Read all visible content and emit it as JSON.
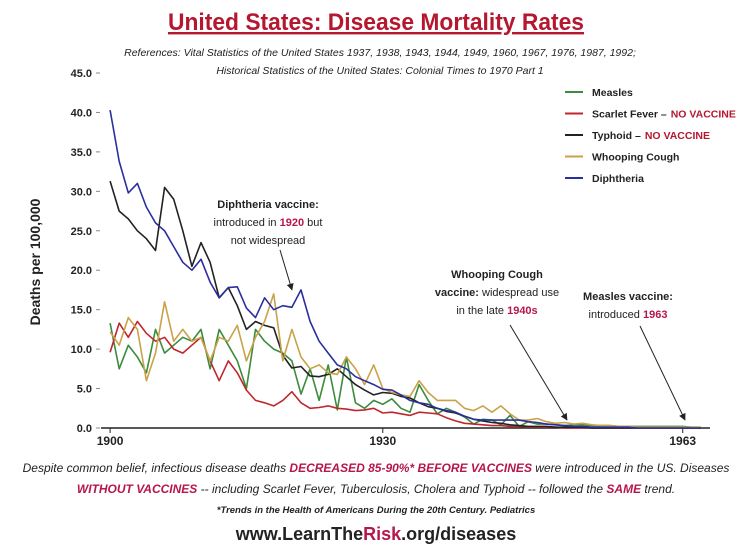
{
  "chart_data": {
    "type": "line",
    "title": "United States: Disease Mortality Rates",
    "references": [
      "References: Vital Statistics of the United States 1937, 1938, 1943, 1944, 1949, 1960, 1967, 1976, 1987, 1992;",
      "Historical Statistics of the United States: Colonial Times to 1970 Part 1"
    ],
    "y_label": "Deaths per 100,000",
    "x": [
      1900,
      1901,
      1902,
      1903,
      1904,
      1905,
      1906,
      1907,
      1908,
      1909,
      1910,
      1911,
      1912,
      1913,
      1914,
      1915,
      1916,
      1917,
      1918,
      1919,
      1920,
      1921,
      1922,
      1923,
      1924,
      1925,
      1926,
      1927,
      1928,
      1929,
      1930,
      1931,
      1932,
      1933,
      1934,
      1935,
      1936,
      1937,
      1938,
      1939,
      1940,
      1941,
      1942,
      1943,
      1944,
      1945,
      1946,
      1947,
      1948,
      1949,
      1950,
      1951,
      1952,
      1953,
      1954,
      1955,
      1956,
      1957,
      1958,
      1959,
      1960,
      1961,
      1962,
      1963,
      1964,
      1965
    ],
    "xlim": [
      1899,
      1966
    ],
    "xticks": [
      1900,
      1930,
      1963
    ],
    "ylim": [
      0,
      45
    ],
    "yticks": [
      {
        "value": 0,
        "label": "0.0"
      },
      {
        "value": 5,
        "label": "5.0"
      },
      {
        "value": 10,
        "label": "10.0"
      },
      {
        "value": 15,
        "label": "15.0"
      },
      {
        "value": 20,
        "label": "20.0"
      },
      {
        "value": 25,
        "label": "25.0"
      },
      {
        "value": 30,
        "label": "30.0"
      },
      {
        "value": 35,
        "label": "35.0"
      },
      {
        "value": 40,
        "label": "40.0"
      },
      {
        "value": 45,
        "label": "45.0"
      }
    ],
    "grid": false,
    "series": [
      {
        "name": "Measles",
        "color": "#3b8c3b",
        "values": [
          13.3,
          7.5,
          10.5,
          9,
          7,
          12.5,
          9.5,
          10.5,
          11.5,
          11,
          12.5,
          7.5,
          12.5,
          10.5,
          8.5,
          5,
          12.5,
          11,
          10,
          9.5,
          8.5,
          4.3,
          7.5,
          3.5,
          8,
          2.3,
          9,
          3.2,
          2.5,
          3.5,
          3,
          3.7,
          2.5,
          2,
          5.5,
          3.5,
          1.8,
          2.5,
          2,
          1.4,
          0.5,
          1.1,
          1,
          0.4,
          1.6,
          0.2,
          0.8,
          0.5,
          0.5,
          0.4,
          0.3,
          0.4,
          0.4,
          0.3,
          0.3,
          0.3,
          0.2,
          0.2,
          0.2,
          0.2,
          0.2,
          0.2,
          0.2,
          0.2,
          0.1,
          0.1
        ]
      },
      {
        "name": "Scarlet Fever –",
        "legend_note": "NO VACCINE",
        "color": "#c0272d",
        "values": [
          9.6,
          13.3,
          11.5,
          13.5,
          12,
          11,
          11.5,
          10,
          9.5,
          10.5,
          11.5,
          8.5,
          6,
          8.5,
          7,
          4.8,
          3.5,
          3.2,
          2.8,
          3.5,
          4.6,
          3.2,
          2.5,
          2.6,
          2.8,
          2.5,
          2.4,
          2.2,
          2.3,
          2.5,
          1.9,
          2,
          1.8,
          1.6,
          2,
          1.9,
          1.8,
          1.3,
          0.9,
          0.6,
          0.5,
          0.4,
          0.3,
          0.3,
          0.2,
          0.2,
          0.1,
          0.1,
          0.1,
          0.1,
          0,
          0,
          0,
          0,
          0,
          0,
          0,
          0,
          0,
          0,
          0,
          0,
          0,
          0,
          0,
          0
        ]
      },
      {
        "name": "Typhoid –",
        "legend_note": "NO VACCINE",
        "color": "#222222",
        "values": [
          31.3,
          27.5,
          26.5,
          25,
          24,
          22.5,
          30.5,
          29,
          25,
          20.5,
          23.5,
          21,
          16.5,
          17.8,
          15.5,
          12.5,
          13.5,
          13,
          12.7,
          9.2,
          7.6,
          7.8,
          6.6,
          6.5,
          6.8,
          7.5,
          6.5,
          5.5,
          4.8,
          4.2,
          4.5,
          4.4,
          4,
          3.8,
          3.2,
          2.7,
          2.5,
          2.1,
          1.9,
          1.5,
          1.1,
          0.9,
          0.7,
          0.6,
          0.4,
          0.3,
          0.2,
          0.2,
          0.2,
          0.1,
          0.1,
          0.1,
          0.1,
          0,
          0,
          0,
          0,
          0,
          0,
          0,
          0,
          0,
          0,
          0,
          0,
          0
        ]
      },
      {
        "name": "Whooping Cough",
        "color": "#c9a24a",
        "values": [
          12.2,
          10.5,
          14,
          12.5,
          6,
          9.5,
          16,
          11,
          12.5,
          11,
          11.5,
          8.5,
          11.5,
          11,
          13,
          8.5,
          11.5,
          13.5,
          17,
          8.5,
          12.5,
          9,
          7.5,
          8,
          7,
          6.8,
          9,
          7.5,
          5.5,
          8,
          5,
          4.5,
          4.2,
          4,
          6,
          4.5,
          3.5,
          3.5,
          3.5,
          2.5,
          2.2,
          2.8,
          2,
          2.8,
          1.8,
          1,
          1,
          1.2,
          0.8,
          0.6,
          0.7,
          0.5,
          0.6,
          0.4,
          0.3,
          0.3,
          0.2,
          0.2,
          0.1,
          0.1,
          0.1,
          0.1,
          0.1,
          0.1,
          0.1,
          0.1
        ]
      },
      {
        "name": "Diphtheria",
        "color": "#2b2f9e",
        "values": [
          40.3,
          33.8,
          29.8,
          31,
          28,
          26,
          25,
          23,
          21,
          20,
          21.4,
          18.5,
          16.5,
          17.8,
          17.9,
          15.2,
          14,
          16.5,
          15,
          15.5,
          15.3,
          17.5,
          13.5,
          11,
          9.5,
          8,
          7.5,
          6.5,
          6,
          5.5,
          4.9,
          4.8,
          4.2,
          3.5,
          3.2,
          3,
          2.5,
          2.2,
          2,
          1.5,
          1.1,
          1,
          1,
          1,
          1,
          1,
          0.8,
          0.7,
          0.5,
          0.4,
          0.3,
          0.2,
          0.2,
          0.1,
          0.1,
          0.1,
          0.1,
          0.1,
          0,
          0,
          0,
          0,
          0,
          0,
          0,
          0
        ]
      }
    ],
    "annotations": [
      {
        "lines": [
          [
            {
              "text": "Diphtheria vaccine:",
              "style": "bold"
            }
          ],
          [
            {
              "text": "introduced in "
            },
            {
              "text": "1920",
              "style": "red"
            },
            {
              "text": " but"
            }
          ],
          [
            {
              "text": "not widespread"
            }
          ]
        ]
      },
      {
        "lines": [
          [
            {
              "text": "Whooping Cough",
              "style": "bold"
            }
          ],
          [
            {
              "text": "vaccine:",
              "style": "bold"
            },
            {
              "text": " widespread use"
            }
          ],
          [
            {
              "text": "in the late "
            },
            {
              "text": "1940s",
              "style": "red"
            }
          ]
        ]
      },
      {
        "lines": [
          [
            {
              "text": "Measles vaccine:",
              "style": "bold"
            }
          ],
          [
            {
              "text": "introduced "
            },
            {
              "text": "1963",
              "style": "red"
            }
          ]
        ]
      }
    ],
    "footer": [
      [
        {
          "text": "Despite common belief, infectious disease deaths "
        },
        {
          "text": "DECREASED 85-90%*",
          "style": "red"
        },
        {
          "text": " "
        },
        {
          "text": "BEFORE VACCINES",
          "style": "red"
        },
        {
          "text": " were introduced in the US. Diseases"
        }
      ],
      [
        {
          "text": "WITHOUT VACCINES",
          "style": "red"
        },
        {
          "text": " -- including Scarlet Fever, Tuberculosis, Cholera and Typhoid -- followed the "
        },
        {
          "text": "SAME",
          "style": "red"
        },
        {
          "text": " trend."
        }
      ]
    ],
    "footnote": "*Trends in the Health of Americans During the 20th Century. Pediatrics",
    "url": [
      {
        "text": "www.LearnThe"
      },
      {
        "text": "Risk",
        "style": "red"
      },
      {
        "text": ".org/diseases"
      }
    ]
  }
}
